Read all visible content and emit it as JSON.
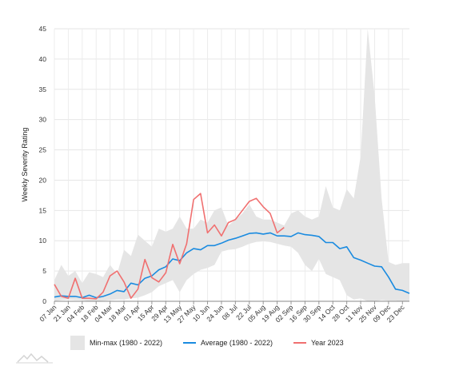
{
  "chart_data": {
    "type": "line",
    "ylabel": "Weekly Severity Rating",
    "ylim": [
      0,
      45
    ],
    "yticks": [
      0,
      5,
      10,
      15,
      20,
      25,
      30,
      35,
      40,
      45
    ],
    "x": [
      "07 Jan",
      "14 Jan",
      "21 Jan",
      "28 Jan",
      "04 Feb",
      "11 Feb",
      "18 Feb",
      "25 Feb",
      "04 Mar",
      "11 Mar",
      "18 Mar",
      "25 Mar",
      "01 Apr",
      "08 Apr",
      "15 Apr",
      "22 Apr",
      "29 Apr",
      "06 May",
      "13 May",
      "20 May",
      "27 May",
      "03 Jun",
      "10 Jun",
      "17 Jun",
      "24 Jun",
      "01 Jul",
      "08 Jul",
      "15 Jul",
      "22 Jul",
      "29 Jul",
      "05 Aug",
      "12 Aug",
      "19 Aug",
      "26 Aug",
      "02 Sep",
      "09 Sep",
      "16 Sep",
      "23 Sep",
      "30 Sep",
      "07 Oct",
      "14 Oct",
      "21 Oct",
      "28 Oct",
      "04 Nov",
      "11 Nov",
      "18 Nov",
      "25 Nov",
      "02 Dec",
      "09 Dec",
      "16 Dec",
      "23 Dec",
      "30 Dec"
    ],
    "xtick_labels": [
      "07 Jan",
      "21 Jan",
      "04 Feb",
      "18 Feb",
      "04 Mar",
      "18 Mar",
      "01 Apr",
      "15 Apr",
      "29 Apr",
      "13 May",
      "27 May",
      "10 Jun",
      "24 Jun",
      "08 Jul",
      "22 Jul",
      "05 Aug",
      "19 Aug",
      "02 Sep",
      "16 Sep",
      "30 Sep",
      "14 Oct",
      "28 Oct",
      "11 Nov",
      "25 Nov",
      "09 Dec",
      "23 Dec"
    ],
    "series": [
      {
        "name": "Min-max (1980 - 2022)",
        "kind": "band",
        "color": "#e5e5e5",
        "min": [
          0,
          0.2,
          0.3,
          0.2,
          0.2,
          0,
          0,
          0.1,
          0.2,
          0.3,
          0.3,
          0.5,
          0.6,
          1.0,
          1.5,
          2.5,
          3.0,
          3.5,
          1.5,
          3.5,
          4.5,
          5.2,
          5.5,
          6.0,
          8.2,
          8.5,
          8.6,
          9.0,
          9.5,
          9.8,
          9.9,
          9.8,
          9.5,
          9.2,
          9.0,
          8.0,
          6.0,
          5.0,
          7.0,
          4.5,
          4.0,
          3.5,
          1.0,
          0.3,
          0.5,
          0.0,
          0.0,
          0.2,
          0.1,
          0.1,
          0,
          0
        ],
        "max": [
          3.5,
          6.0,
          4.2,
          5.0,
          3.0,
          4.8,
          4.5,
          4.0,
          6.0,
          4.5,
          8.5,
          7.5,
          11.0,
          10.0,
          9.0,
          12.0,
          11.5,
          12.0,
          14.0,
          12.0,
          12.0,
          13.5,
          13.0,
          15.0,
          15.5,
          12.5,
          13.5,
          14.5,
          16.0,
          14.0,
          13.5,
          13.5,
          13.0,
          12.5,
          14.5,
          15.0,
          14.0,
          13.5,
          14.0,
          19.0,
          15.5,
          15.0,
          18.5,
          17.0,
          24.0,
          45.0,
          34.0,
          17.0,
          6.5,
          6.0,
          6.3,
          6.3
        ]
      },
      {
        "name": "Average (1980 - 2022)",
        "kind": "line",
        "color": "#1a8be0",
        "values": [
          0.7,
          0.9,
          0.8,
          0.8,
          0.6,
          1.0,
          0.6,
          0.8,
          1.2,
          1.8,
          1.6,
          3.0,
          2.7,
          3.8,
          4.2,
          5.2,
          5.7,
          7.0,
          6.7,
          8.0,
          8.7,
          8.5,
          9.2,
          9.2,
          9.6,
          10.1,
          10.4,
          10.8,
          11.2,
          11.3,
          11.1,
          11.3,
          10.8,
          10.8,
          10.7,
          11.3,
          11.0,
          10.9,
          10.7,
          9.7,
          9.7,
          8.7,
          9.0,
          7.2,
          6.8,
          6.3,
          5.8,
          5.7,
          4.0,
          2.0,
          1.8,
          1.3
        ]
      },
      {
        "name": "Year 2023",
        "kind": "line",
        "color": "#f07070",
        "values": [
          2.8,
          0.8,
          0.5,
          3.8,
          0.5,
          0.5,
          0.4,
          1.5,
          4.2,
          5.0,
          3.2,
          0.5,
          2.0,
          6.9,
          3.9,
          3.2,
          4.7,
          9.4,
          6.2,
          9.5,
          16.8,
          17.8,
          11.3,
          12.6,
          10.8,
          13.0,
          13.5,
          15.0,
          16.5,
          17.0,
          15.6,
          14.5,
          11.3,
          12.2,
          null,
          null,
          null,
          null,
          null,
          null,
          null,
          null,
          null,
          null,
          null,
          null,
          null,
          null,
          null,
          null,
          null,
          null
        ]
      }
    ],
    "grid": true,
    "legend_position": "bottom"
  }
}
